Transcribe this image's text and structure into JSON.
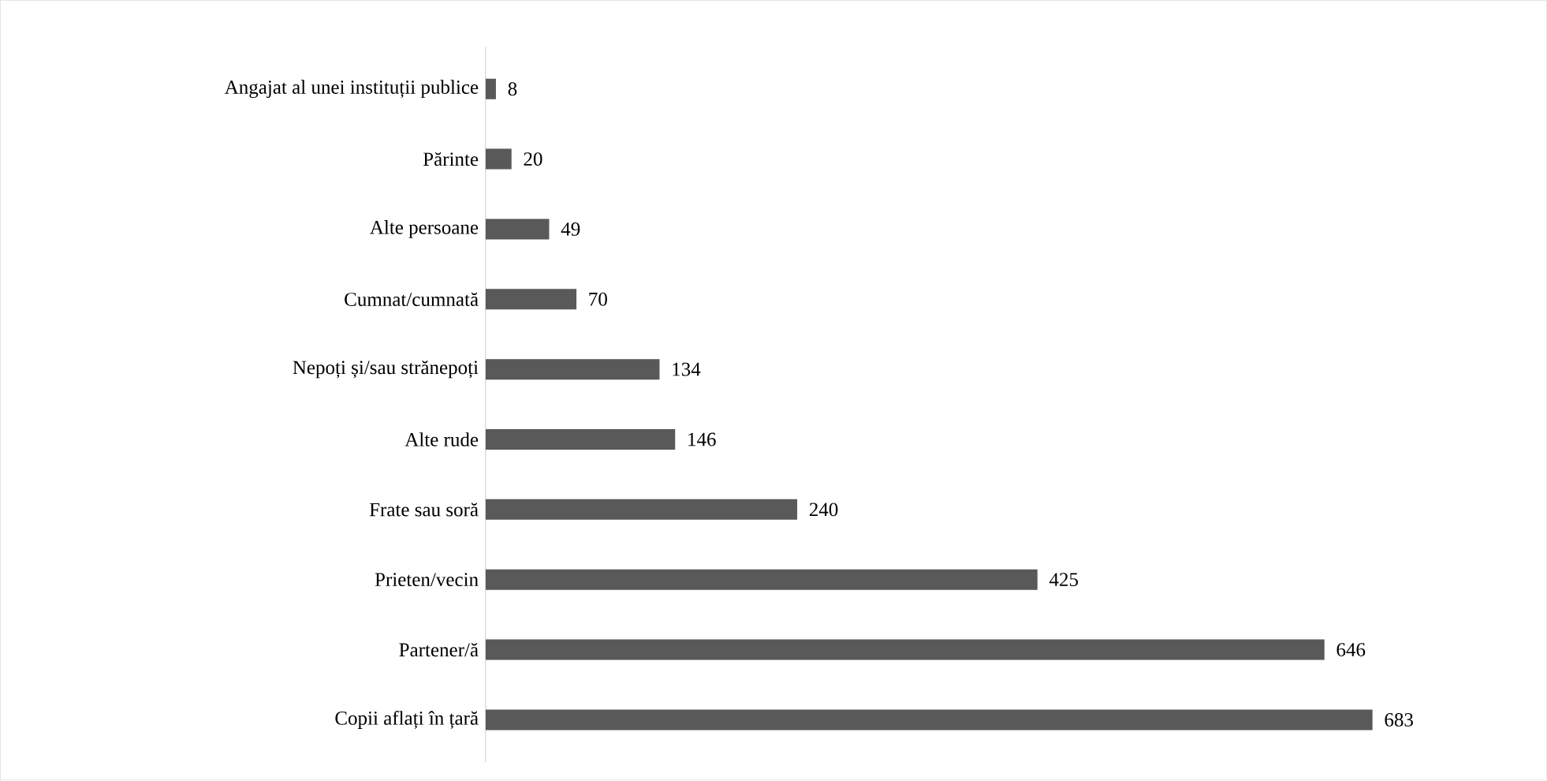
{
  "chart_data": {
    "type": "bar",
    "orientation": "horizontal",
    "categories": [
      "Angajat al unei instituții publice",
      "Părinte",
      "Alte persoane",
      "Cumnat/cumnată",
      "Nepoți și/sau strănepoți",
      "Alte rude",
      "Frate sau soră",
      "Prieten/vecin",
      "Partener/ă",
      "Copii aflați în țară"
    ],
    "values": [
      8,
      20,
      49,
      70,
      134,
      146,
      240,
      425,
      646,
      683
    ],
    "color": "#595959",
    "data_labels": true,
    "tick_labels": "y"
  }
}
